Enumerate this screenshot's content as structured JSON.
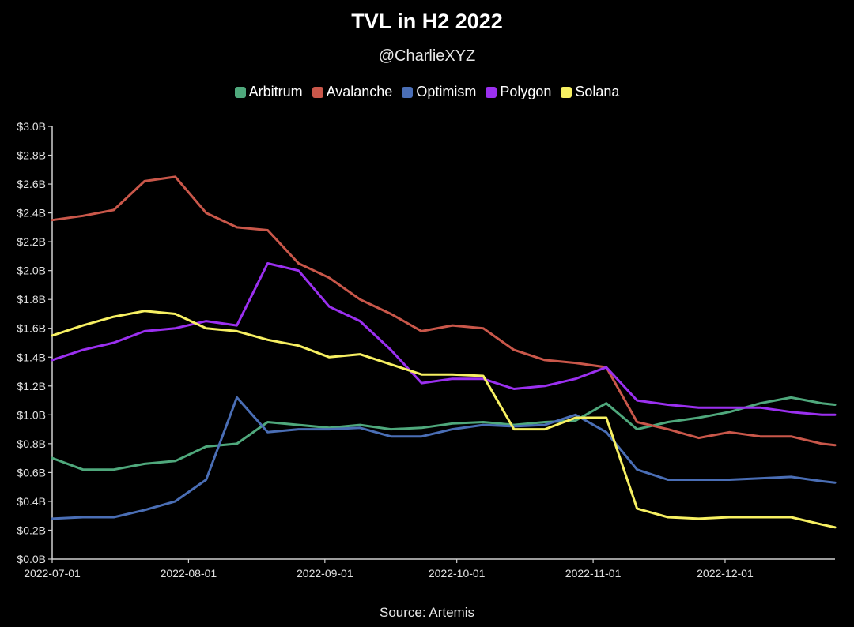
{
  "chart_data": {
    "type": "line",
    "title": "TVL in H2 2022",
    "subtitle": "@CharlieXYZ",
    "source": "Source: Artemis",
    "xlabel": "",
    "ylabel": "",
    "x": [
      "2022-07-01",
      "2022-07-08",
      "2022-07-15",
      "2022-07-22",
      "2022-07-29",
      "2022-08-05",
      "2022-08-12",
      "2022-08-19",
      "2022-08-26",
      "2022-09-02",
      "2022-09-09",
      "2022-09-16",
      "2022-09-23",
      "2022-09-30",
      "2022-10-07",
      "2022-10-14",
      "2022-10-21",
      "2022-10-28",
      "2022-11-04",
      "2022-11-11",
      "2022-11-18",
      "2022-11-25",
      "2022-12-02",
      "2022-12-09",
      "2022-12-16",
      "2022-12-23",
      "2022-12-26"
    ],
    "x_ticks": [
      "2022-07-01",
      "2022-08-01",
      "2022-09-01",
      "2022-10-01",
      "2022-11-01",
      "2022-12-01"
    ],
    "y_ticks": [
      0,
      0.2,
      0.4,
      0.6,
      0.8,
      1.0,
      1.2,
      1.4,
      1.6,
      1.8,
      2.0,
      2.2,
      2.4,
      2.6,
      2.8,
      3.0
    ],
    "y_tick_labels": [
      "$0.0B",
      "$0.2B",
      "$0.4B",
      "$0.6B",
      "$0.8B",
      "$1.0B",
      "$1.2B",
      "$1.4B",
      "$1.6B",
      "$1.8B",
      "$2.0B",
      "$2.2B",
      "$2.4B",
      "$2.6B",
      "$2.8B",
      "$3.0B"
    ],
    "ylim": [
      0,
      3.0
    ],
    "grid": false,
    "legend_position": "top-center",
    "series": [
      {
        "name": "Arbitrum",
        "color": "#4fa87c",
        "values": [
          0.7,
          0.62,
          0.62,
          0.66,
          0.68,
          0.78,
          0.8,
          0.95,
          0.93,
          0.91,
          0.93,
          0.9,
          0.91,
          0.94,
          0.95,
          0.93,
          0.95,
          0.96,
          1.08,
          0.9,
          0.95,
          0.98,
          1.02,
          1.08,
          1.12,
          1.08,
          1.07
        ]
      },
      {
        "name": "Avalanche",
        "color": "#c9574a",
        "values": [
          2.35,
          2.38,
          2.42,
          2.62,
          2.65,
          2.4,
          2.3,
          2.28,
          2.05,
          1.95,
          1.8,
          1.7,
          1.58,
          1.62,
          1.6,
          1.45,
          1.38,
          1.36,
          1.33,
          0.95,
          0.9,
          0.84,
          0.88,
          0.85,
          0.85,
          0.8,
          0.79
        ]
      },
      {
        "name": "Optimism",
        "color": "#4a6eb5",
        "values": [
          0.28,
          0.29,
          0.29,
          0.34,
          0.4,
          0.55,
          1.12,
          0.88,
          0.9,
          0.9,
          0.91,
          0.85,
          0.85,
          0.9,
          0.93,
          0.92,
          0.93,
          1.0,
          0.88,
          0.62,
          0.55,
          0.55,
          0.55,
          0.56,
          0.57,
          0.54,
          0.53
        ]
      },
      {
        "name": "Polygon",
        "color": "#9b30f0",
        "values": [
          1.38,
          1.45,
          1.5,
          1.58,
          1.6,
          1.65,
          1.62,
          2.05,
          2.0,
          1.75,
          1.65,
          1.45,
          1.22,
          1.25,
          1.25,
          1.18,
          1.2,
          1.25,
          1.33,
          1.1,
          1.07,
          1.05,
          1.05,
          1.05,
          1.02,
          1.0,
          1.0
        ]
      },
      {
        "name": "Solana",
        "color": "#f7f062",
        "values": [
          1.55,
          1.62,
          1.68,
          1.72,
          1.7,
          1.6,
          1.58,
          1.52,
          1.48,
          1.4,
          1.42,
          1.35,
          1.28,
          1.28,
          1.27,
          0.9,
          0.9,
          0.98,
          0.98,
          0.35,
          0.29,
          0.28,
          0.29,
          0.29,
          0.29,
          0.24,
          0.22
        ]
      }
    ]
  }
}
